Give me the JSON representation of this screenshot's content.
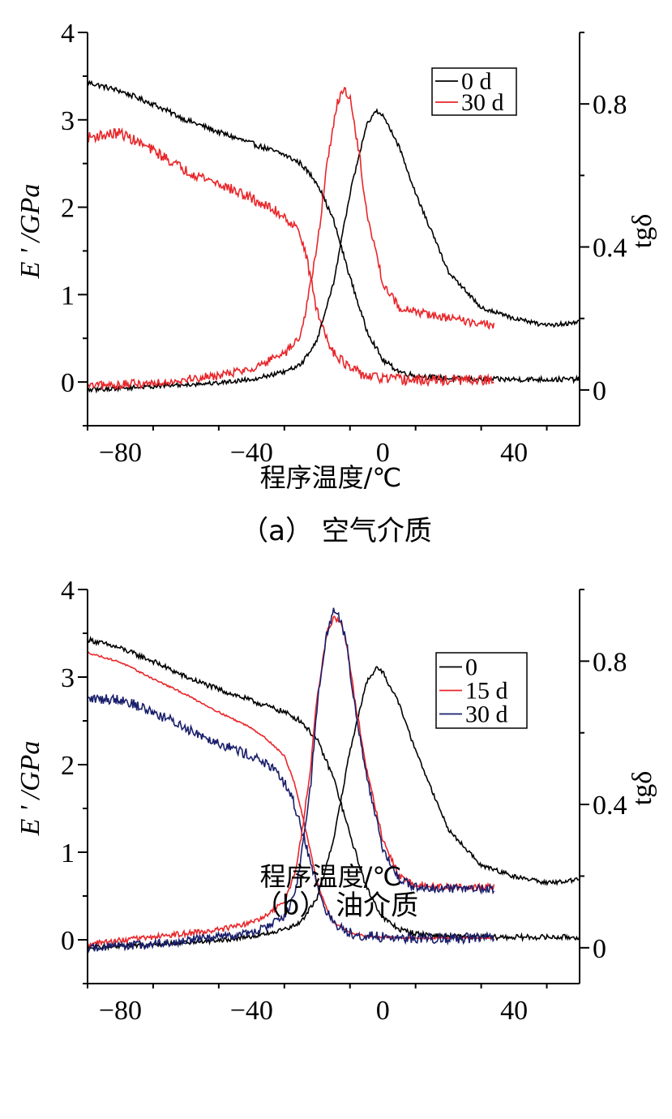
{
  "chart_data": [
    {
      "type": "line",
      "caption": "（a） 空气介质",
      "xlabel": "程序温度/℃",
      "ylabel_left": "E ' /GPa",
      "ylabel_right": "tgδ",
      "xlim": [
        -90,
        60
      ],
      "ylim_left": [
        -0.5,
        4
      ],
      "ylim_right": [
        -0.1,
        1.0
      ],
      "xticks": [
        -80,
        -40,
        0,
        40
      ],
      "yticks_left": [
        0,
        1,
        2,
        3,
        4
      ],
      "yticks_right": [
        0,
        0.4,
        0.8
      ],
      "yticks_right_labels": [
        "0",
        "0.4",
        "0.8"
      ],
      "legend_position": "top-right",
      "colors": {
        "0 d": "#000000",
        "30 d": "#e8262a"
      },
      "series": [
        {
          "name": "0 d",
          "axis": "left",
          "x": [
            -90,
            -80,
            -70,
            -60,
            -50,
            -40,
            -30,
            -25,
            -20,
            -15,
            -10,
            -5,
            0,
            5,
            10,
            20,
            30,
            40,
            60
          ],
          "y": [
            3.43,
            3.33,
            3.18,
            3.0,
            2.86,
            2.73,
            2.6,
            2.5,
            2.28,
            1.85,
            1.2,
            0.6,
            0.25,
            0.12,
            0.07,
            0.04,
            0.03,
            0.03,
            0.03
          ],
          "noise": 0.03
        },
        {
          "name": "30 d",
          "axis": "left",
          "x": [
            -90,
            -80,
            -70,
            -60,
            -50,
            -40,
            -30,
            -25,
            -22,
            -20,
            -17,
            -15,
            -10,
            -5,
            0,
            10,
            20,
            34
          ],
          "y": [
            2.8,
            2.85,
            2.65,
            2.42,
            2.27,
            2.1,
            1.9,
            1.7,
            1.2,
            0.8,
            0.5,
            0.35,
            0.15,
            0.07,
            0.04,
            0.02,
            0.02,
            0.02
          ],
          "noise": 0.06
        },
        {
          "name": "0 d",
          "axis": "right",
          "x": [
            -90,
            -70,
            -50,
            -40,
            -30,
            -25,
            -20,
            -15,
            -10,
            -5,
            -2,
            0,
            5,
            10,
            20,
            30,
            40,
            50,
            60
          ],
          "y": [
            0.0,
            0.01,
            0.02,
            0.03,
            0.05,
            0.07,
            0.14,
            0.3,
            0.55,
            0.74,
            0.78,
            0.77,
            0.68,
            0.55,
            0.33,
            0.23,
            0.2,
            0.18,
            0.19
          ],
          "noise": 0.006
        },
        {
          "name": "30 d",
          "axis": "right",
          "x": [
            -90,
            -70,
            -50,
            -40,
            -30,
            -25,
            -20,
            -17,
            -14,
            -12,
            -10,
            -7,
            -5,
            0,
            5,
            10,
            20,
            34
          ],
          "y": [
            0.01,
            0.02,
            0.04,
            0.06,
            0.1,
            0.15,
            0.4,
            0.63,
            0.8,
            0.84,
            0.82,
            0.65,
            0.5,
            0.3,
            0.23,
            0.22,
            0.2,
            0.18
          ],
          "noise": 0.012
        }
      ]
    },
    {
      "type": "line",
      "caption": "（b） 油介质",
      "xlabel": "程序温度/℃",
      "ylabel_left": "E ' /GPa",
      "ylabel_right": "tgδ",
      "xlim": [
        -90,
        60
      ],
      "ylim_left": [
        -0.5,
        4
      ],
      "ylim_right": [
        -0.1,
        1.0
      ],
      "xticks": [
        -80,
        -40,
        0,
        40
      ],
      "yticks_left": [
        0,
        1,
        2,
        3,
        4
      ],
      "yticks_right": [
        0,
        0.4,
        0.8
      ],
      "yticks_right_labels": [
        "0",
        "0.4",
        "0.8"
      ],
      "legend_position": "top-right",
      "colors": {
        "0": "#000000",
        "15 d": "#e8262a",
        "30 d": "#1a1f6b"
      },
      "series": [
        {
          "name": "0",
          "axis": "left",
          "x": [
            -90,
            -80,
            -70,
            -60,
            -50,
            -40,
            -30,
            -25,
            -20,
            -15,
            -10,
            -5,
            0,
            5,
            10,
            20,
            30,
            40,
            60
          ],
          "y": [
            3.43,
            3.33,
            3.18,
            3.0,
            2.86,
            2.73,
            2.6,
            2.5,
            2.28,
            1.85,
            1.2,
            0.6,
            0.25,
            0.12,
            0.07,
            0.04,
            0.03,
            0.03,
            0.03
          ],
          "noise": 0.03
        },
        {
          "name": "15 d",
          "axis": "left",
          "x": [
            -90,
            -80,
            -70,
            -60,
            -50,
            -40,
            -35,
            -30,
            -27,
            -25,
            -22,
            -20,
            -17,
            -15,
            -10,
            -5,
            0,
            10,
            20,
            34
          ],
          "y": [
            3.28,
            3.17,
            2.98,
            2.8,
            2.6,
            2.42,
            2.28,
            2.1,
            1.8,
            1.5,
            1.0,
            0.65,
            0.35,
            0.2,
            0.08,
            0.04,
            0.03,
            0.02,
            0.02,
            0.02
          ],
          "noise": 0.01
        },
        {
          "name": "30 d",
          "axis": "left",
          "x": [
            -90,
            -80,
            -70,
            -60,
            -50,
            -40,
            -35,
            -30,
            -27,
            -25,
            -22,
            -20,
            -17,
            -15,
            -10,
            -5,
            0,
            10,
            20,
            34
          ],
          "y": [
            2.75,
            2.75,
            2.6,
            2.42,
            2.25,
            2.1,
            2.0,
            1.8,
            1.55,
            1.3,
            0.9,
            0.6,
            0.32,
            0.18,
            0.08,
            0.04,
            0.03,
            0.02,
            0.02,
            0.02
          ],
          "noise": 0.06
        },
        {
          "name": "0",
          "axis": "right",
          "x": [
            -90,
            -70,
            -50,
            -40,
            -30,
            -25,
            -20,
            -15,
            -10,
            -5,
            -2,
            0,
            5,
            10,
            20,
            30,
            40,
            50,
            60
          ],
          "y": [
            0.0,
            0.01,
            0.02,
            0.03,
            0.05,
            0.07,
            0.14,
            0.3,
            0.55,
            0.74,
            0.78,
            0.77,
            0.68,
            0.55,
            0.33,
            0.23,
            0.2,
            0.18,
            0.19
          ],
          "noise": 0.006
        },
        {
          "name": "15 d",
          "axis": "right",
          "x": [
            -90,
            -70,
            -50,
            -40,
            -35,
            -30,
            -27,
            -25,
            -22,
            -20,
            -17,
            -15,
            -13,
            -11,
            -9,
            -5,
            0,
            5,
            10,
            20,
            34
          ],
          "y": [
            0.01,
            0.03,
            0.05,
            0.07,
            0.09,
            0.13,
            0.2,
            0.3,
            0.5,
            0.7,
            0.88,
            0.92,
            0.91,
            0.85,
            0.72,
            0.5,
            0.3,
            0.2,
            0.175,
            0.17,
            0.17
          ],
          "noise": 0.008
        },
        {
          "name": "30 d",
          "axis": "right",
          "x": [
            -90,
            -70,
            -50,
            -40,
            -35,
            -30,
            -27,
            -25,
            -22,
            -20,
            -17,
            -15,
            -13,
            -11,
            -9,
            -5,
            0,
            5,
            10,
            20,
            34
          ],
          "y": [
            0.0,
            0.01,
            0.03,
            0.04,
            0.06,
            0.09,
            0.14,
            0.25,
            0.45,
            0.68,
            0.88,
            0.94,
            0.92,
            0.85,
            0.7,
            0.48,
            0.28,
            0.19,
            0.17,
            0.165,
            0.165
          ],
          "noise": 0.012
        }
      ]
    }
  ]
}
